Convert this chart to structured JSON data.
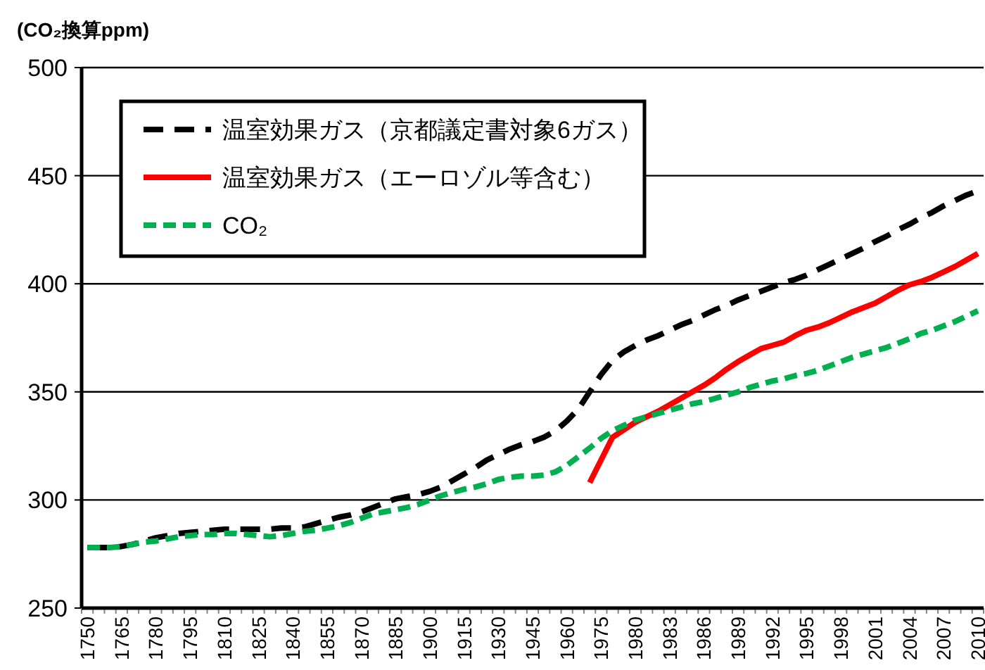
{
  "chart_data": {
    "type": "line",
    "ylabel": "(CO₂換算ppm)",
    "categories": [
      "1750",
      null,
      null,
      "1765",
      null,
      null,
      "1780",
      null,
      null,
      "1795",
      null,
      null,
      "1810",
      null,
      null,
      "1825",
      null,
      null,
      "1840",
      null,
      null,
      "1855",
      null,
      null,
      "1870",
      null,
      null,
      "1885",
      null,
      null,
      "1900",
      null,
      null,
      "1915",
      null,
      null,
      "1930",
      null,
      null,
      "1945",
      null,
      null,
      "1960",
      null,
      null,
      "1975",
      null,
      null,
      "1980",
      null,
      null,
      "1983",
      null,
      null,
      "1986",
      null,
      null,
      "1989",
      null,
      null,
      "1992",
      null,
      null,
      "1995",
      null,
      null,
      "1998",
      null,
      null,
      "2001",
      null,
      null,
      "2004",
      null,
      null,
      "2007",
      null,
      null,
      "2010"
    ],
    "series": [
      {
        "name": "温室効果ガス（京都議定書対象6ガス）",
        "color": "#000000",
        "line_style": "dashed",
        "values": [
          278,
          278,
          278,
          278.5,
          279.5,
          281,
          282.5,
          283.5,
          284.5,
          285,
          285.5,
          286,
          286.5,
          286.5,
          286.5,
          286.5,
          286.5,
          287,
          287,
          287.5,
          289,
          290.5,
          292,
          293,
          294.5,
          296.5,
          298.5,
          300.5,
          301.5,
          302.5,
          304,
          306,
          309,
          312,
          315,
          318.5,
          321,
          323.5,
          325.5,
          327,
          329,
          332,
          336.5,
          342,
          350,
          358,
          364.5,
          368.5,
          371.5,
          374,
          376,
          378.5,
          381,
          383,
          385.5,
          388,
          390,
          392.5,
          394.5,
          396.5,
          398.5,
          400.5,
          402,
          404,
          406.5,
          409,
          411.5,
          414,
          416.5,
          419.5,
          422,
          425,
          427.5,
          430.5,
          433,
          436,
          438.5,
          441,
          443
        ]
      },
      {
        "name": "温室効果ガス（エーロゾル等含む）",
        "color": "#ff0000",
        "line_style": "solid",
        "values": [
          null,
          null,
          null,
          null,
          null,
          null,
          null,
          null,
          null,
          null,
          null,
          null,
          null,
          null,
          null,
          null,
          null,
          null,
          null,
          null,
          null,
          null,
          null,
          null,
          null,
          null,
          null,
          null,
          null,
          null,
          null,
          null,
          null,
          null,
          null,
          null,
          null,
          null,
          null,
          null,
          null,
          null,
          null,
          null,
          308,
          318.5,
          329,
          332.5,
          336,
          338.5,
          341,
          344,
          347,
          350,
          353,
          356.5,
          360.5,
          364,
          367,
          370,
          371.5,
          373,
          376,
          378.5,
          380,
          382,
          384.5,
          387,
          389,
          391,
          394,
          397,
          399.5,
          401,
          403,
          405.5,
          408,
          411,
          414
        ]
      },
      {
        "name": "CO₂",
        "color": "#00b050",
        "line_style": "dotted",
        "values": [
          278,
          278,
          278,
          278.5,
          279.5,
          280.5,
          281,
          282,
          283,
          283.5,
          284,
          284,
          284.5,
          284.5,
          284,
          283.5,
          283,
          283.5,
          284.5,
          285.5,
          286,
          287,
          288,
          289.5,
          291.5,
          293.5,
          294.5,
          295.5,
          296.5,
          298,
          300,
          302,
          303.5,
          305,
          306,
          307.5,
          309.5,
          310.5,
          311,
          311,
          311.5,
          313,
          316,
          320,
          324,
          328.5,
          332,
          334.5,
          337,
          338.5,
          340,
          341.5,
          343,
          344.5,
          345.5,
          347,
          348.5,
          350,
          352,
          353.5,
          355,
          356,
          357.5,
          358.5,
          360,
          362,
          364,
          366,
          367.5,
          369,
          370.5,
          372.5,
          374.5,
          377,
          378.5,
          380.5,
          382.5,
          385,
          387.5
        ]
      }
    ],
    "ylim": [
      250,
      500
    ],
    "yticks": [
      250,
      300,
      350,
      400,
      450,
      500
    ],
    "grid": "y",
    "legend": "top left",
    "marker": "none"
  }
}
